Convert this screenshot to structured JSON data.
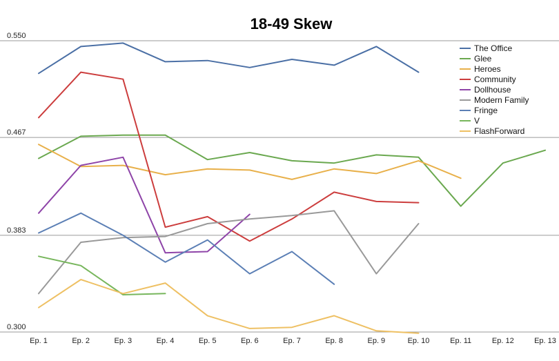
{
  "chart_data": {
    "type": "line",
    "title": "18-49 Skew",
    "xlabel": "",
    "ylabel": "",
    "categories": [
      "Ep. 1",
      "Ep. 2",
      "Ep. 3",
      "Ep. 4",
      "Ep. 5",
      "Ep. 6",
      "Ep. 7",
      "Ep. 8",
      "Ep. 9",
      "Ep. 10",
      "Ep. 11",
      "Ep. 12",
      "Ep. 13"
    ],
    "y_ticks": [
      "0.300",
      "0.383",
      "0.467",
      "0.550"
    ],
    "ylim": [
      0.3,
      0.55
    ],
    "grid": true,
    "legend_position": "top-right",
    "series": [
      {
        "name": "The Office",
        "color": "#4a6fa5",
        "values": [
          0.522,
          0.545,
          0.548,
          0.532,
          0.533,
          0.527,
          0.534,
          0.529,
          0.545,
          0.523,
          null,
          null,
          null
        ]
      },
      {
        "name": "Glee",
        "color": "#6aa84f",
        "values": [
          0.449,
          0.468,
          0.469,
          0.469,
          0.448,
          0.454,
          0.447,
          0.445,
          0.452,
          0.45,
          0.408,
          0.445,
          0.456
        ]
      },
      {
        "name": "Heroes",
        "color": "#e8b04a",
        "values": [
          0.461,
          0.442,
          0.443,
          0.435,
          0.44,
          0.439,
          0.431,
          0.44,
          0.436,
          0.447,
          0.432,
          null,
          null
        ]
      },
      {
        "name": "Community",
        "color": "#cc3d3d",
        "values": [
          0.484,
          0.523,
          0.517,
          0.39,
          0.399,
          0.378,
          0.397,
          0.42,
          0.412,
          0.411,
          null,
          null,
          null
        ]
      },
      {
        "name": "Dollhouse",
        "color": "#8e44a8",
        "values": [
          0.402,
          0.443,
          0.45,
          0.368,
          0.369,
          0.401,
          null,
          null,
          null,
          null,
          null,
          null,
          null
        ]
      },
      {
        "name": "Modern Family",
        "color": "#999999",
        "values": [
          0.333,
          0.377,
          0.381,
          0.382,
          0.393,
          0.397,
          0.4,
          0.404,
          0.35,
          0.393,
          null,
          null,
          null
        ]
      },
      {
        "name": "Fringe",
        "color": "#5b7fb5",
        "values": [
          0.385,
          0.402,
          0.383,
          0.36,
          0.379,
          0.35,
          0.369,
          0.341,
          null,
          null,
          null,
          null,
          null
        ]
      },
      {
        "name": "V",
        "color": "#77b65c",
        "values": [
          0.365,
          0.357,
          0.332,
          0.333,
          null,
          null,
          null,
          null,
          null,
          null,
          null,
          null,
          null
        ]
      },
      {
        "name": "FlashForward",
        "color": "#eec063",
        "values": [
          0.321,
          0.345,
          0.333,
          0.342,
          0.314,
          0.303,
          0.304,
          0.314,
          0.301,
          0.299,
          null,
          null,
          null
        ]
      }
    ]
  }
}
